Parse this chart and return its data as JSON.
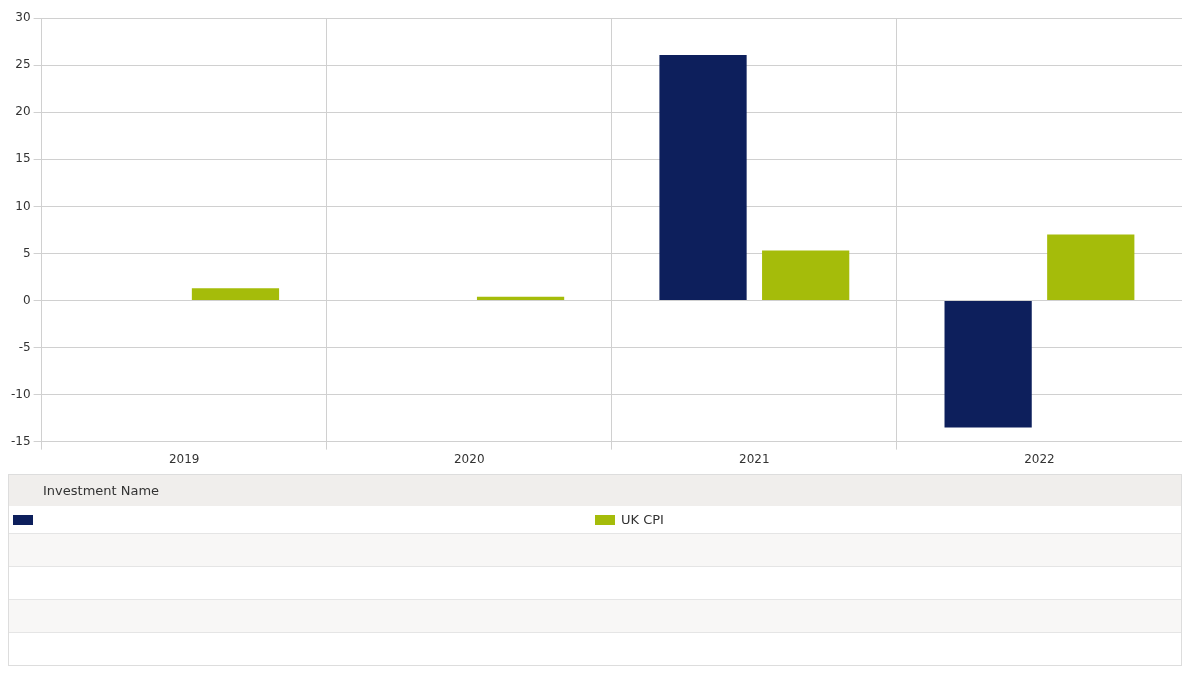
{
  "chart_data": {
    "type": "bar",
    "categories": [
      "2019",
      "2020",
      "2021",
      "2022"
    ],
    "series": [
      {
        "color": "#0d1f5c",
        "values": [
          null,
          null,
          26.1,
          -13.5
        ]
      },
      {
        "name": "UK CPI",
        "color": "#a5bc0a",
        "values": [
          1.3,
          0.4,
          5.3,
          7.0
        ]
      }
    ],
    "ylim": [
      -15,
      30
    ],
    "yticks": [
      -15,
      -10,
      -5,
      0,
      5,
      10,
      15,
      20,
      25,
      30
    ],
    "grid": true,
    "legend": "bottom",
    "legend_title": "Investment Name"
  }
}
